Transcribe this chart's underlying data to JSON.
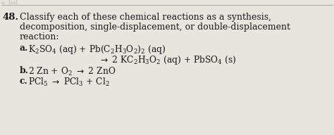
{
  "background_color": "#e8e4de",
  "text_color": "#1a1a1a",
  "number": "48.",
  "q1": "Classify each of these chemical reactions as a synthesis,",
  "q2": "decomposition, single-displacement, or double-displacement",
  "q3": "reaction:",
  "a_label": "a.",
  "a_line1": "$\\mathregular{K_2SO_4}$ (aq) + $\\mathregular{Pb(C_2H_3O_2)_2}$ (aq)",
  "a_line2": "$\\rightarrow$ 2 $\\mathregular{KC_2H_3O_2}$ (aq) + $\\mathregular{PbSO_4}$ (s)",
  "b_label": "b.",
  "b_line": "2 Zn + $\\mathregular{O_2}$ $\\rightarrow$ 2 ZnO",
  "c_label": "c.",
  "c_line": "$\\mathregular{PCl_5}$ $\\rightarrow$ $\\mathregular{PCl_3}$ + $\\mathregular{Cl_2}$",
  "font_size_number": 9.5,
  "font_size_text": 9.0,
  "font_size_rxn": 8.8
}
